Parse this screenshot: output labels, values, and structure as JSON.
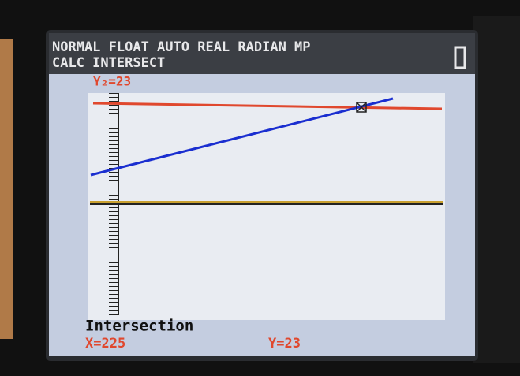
{
  "status_bar": {
    "mode": "NORMAL FLOAT AUTO REAL RADIAN MP",
    "menu": "CALC INTERSECT"
  },
  "graph": {
    "equation": "Y₂=23",
    "message": "Intersection",
    "x_readout": "X=225",
    "y_readout": "Y=23"
  }
}
